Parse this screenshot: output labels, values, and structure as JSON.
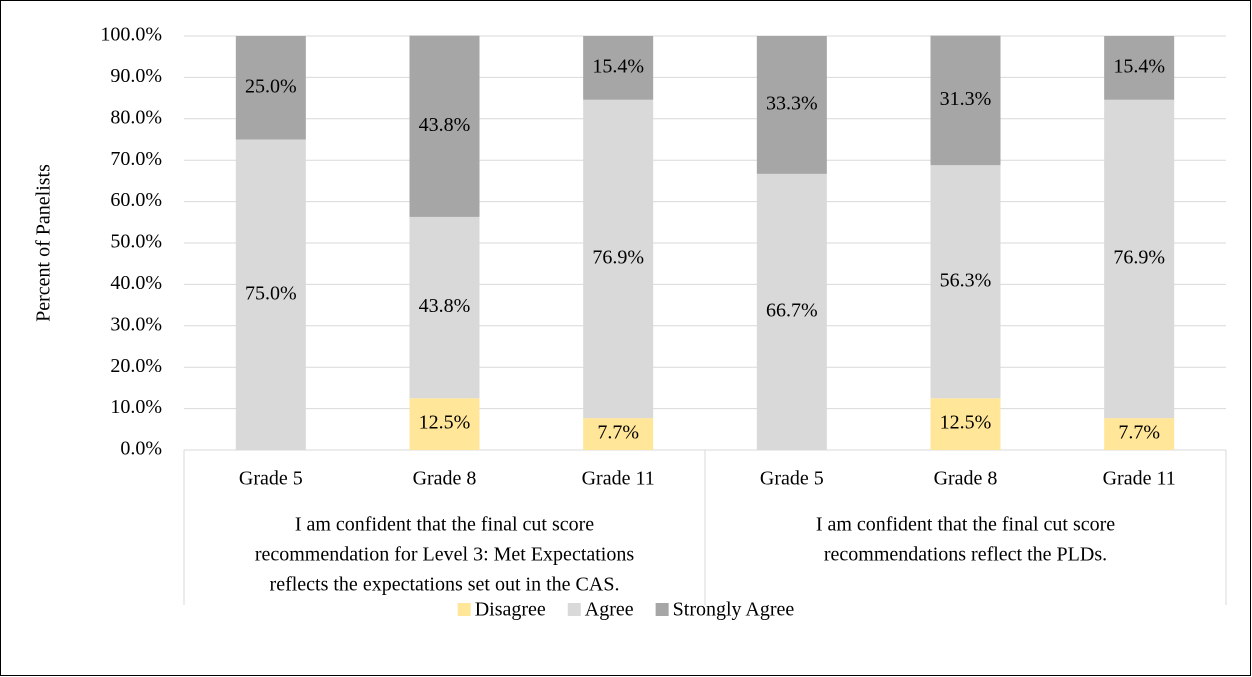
{
  "chart_data": {
    "type": "stacked_bar",
    "y_label": "Percent of Panelists",
    "categories": [
      "Grade 5",
      "Grade 8",
      "Grade 11",
      "Grade 5",
      "Grade 8",
      "Grade 11"
    ],
    "groups": [
      {
        "lines": [
          "I am confident that the final cut score",
          "recommendation for Level 3: Met Expectations",
          "reflects the expectations set out in the CAS."
        ],
        "span": 3
      },
      {
        "lines": [
          "I am confident that the final cut score",
          "recommendations reflect the PLDs."
        ],
        "span": 3
      }
    ],
    "series": [
      {
        "name": "Disagree",
        "color": "#ffe699",
        "values": [
          0,
          12.5,
          7.7,
          0,
          12.5,
          7.7
        ],
        "value_labels": [
          null,
          "12.5%",
          "7.7%",
          null,
          "12.5%",
          "7.7%"
        ]
      },
      {
        "name": "Agree",
        "color": "#d9d9d9",
        "values": [
          75.0,
          43.8,
          76.9,
          66.7,
          56.3,
          76.9
        ],
        "value_labels": [
          "75.0%",
          "43.8%",
          "76.9%",
          "66.7%",
          "56.3%",
          "76.9%"
        ]
      },
      {
        "name": "Strongly Agree",
        "color": "#a6a6a6",
        "values": [
          25.0,
          43.8,
          15.4,
          33.3,
          31.3,
          15.4
        ],
        "value_labels": [
          "25.0%",
          "43.8%",
          "15.4%",
          "33.3%",
          "31.3%",
          "15.4%"
        ]
      }
    ],
    "ylim": [
      0,
      100
    ],
    "yticks": [
      {
        "value": 0,
        "label": "0.0%"
      },
      {
        "value": 10,
        "label": "10.0%"
      },
      {
        "value": 20,
        "label": "20.0%"
      },
      {
        "value": 30,
        "label": "30.0%"
      },
      {
        "value": 40,
        "label": "40.0%"
      },
      {
        "value": 50,
        "label": "50.0%"
      },
      {
        "value": 60,
        "label": "60.0%"
      },
      {
        "value": 70,
        "label": "70.0%"
      },
      {
        "value": 80,
        "label": "80.0%"
      },
      {
        "value": 90,
        "label": "90.0%"
      },
      {
        "value": 100,
        "label": "100.0%"
      }
    ],
    "grid": true,
    "legend": "bottom"
  }
}
